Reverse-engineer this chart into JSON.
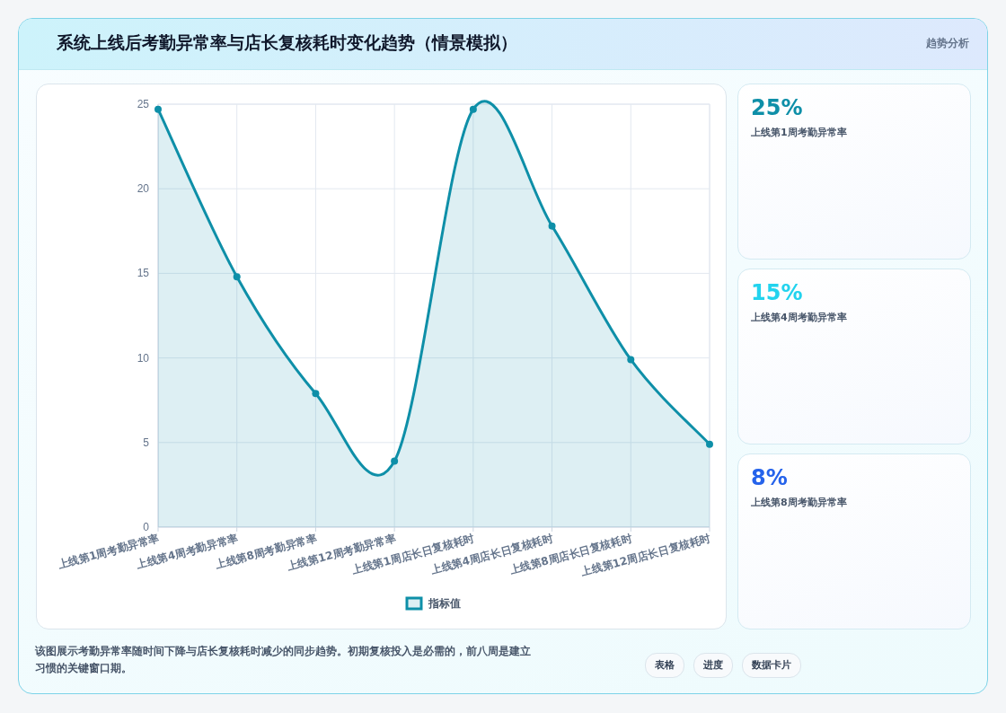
{
  "chart_data": [
    {
      "type": "area",
      "title": "系统上线后考勤异常率与店长复核耗时变化趋势（情景模拟）",
      "categories": [
        "上线第1周考勤异常率",
        "上线第4周考勤异常率",
        "上线第8周考勤异常率",
        "上线第12周考勤异常率",
        "上线第1周店长日复核耗时",
        "上线第4周店长日复核耗时",
        "上线第8周店长日复核耗时",
        "上线第12周店长日复核耗时"
      ],
      "series": [
        {
          "name": "指标值",
          "color": "#0e8fa8",
          "values": [
            24.7,
            14.8,
            7.9,
            3.9,
            24.7,
            17.8,
            9.9,
            4.9
          ]
        }
      ],
      "ylim": [
        0,
        25
      ],
      "yticks": [
        0,
        5,
        10,
        15,
        20,
        25
      ],
      "grid": true,
      "legend": "bottom",
      "marker": "circle",
      "annotations": [
        "趋势分析",
        "该图展示考勤异常率随时间下降与店长复核耗时减少的同步趋势。初期复核投入是必需的，前八周是建立习惯的关键窗口期。",
        "表格",
        "进度",
        "数据卡片"
      ]
    },
    {
      "type": "other",
      "annotations": [
        "25%",
        "上线第1周考勤异常率",
        "15%",
        "上线第4周考勤异常率",
        "8%",
        "上线第8周考勤异常率"
      ],
      "colors": [
        "#0e8fa8",
        "#22d3ee",
        "#2563eb"
      ]
    }
  ]
}
